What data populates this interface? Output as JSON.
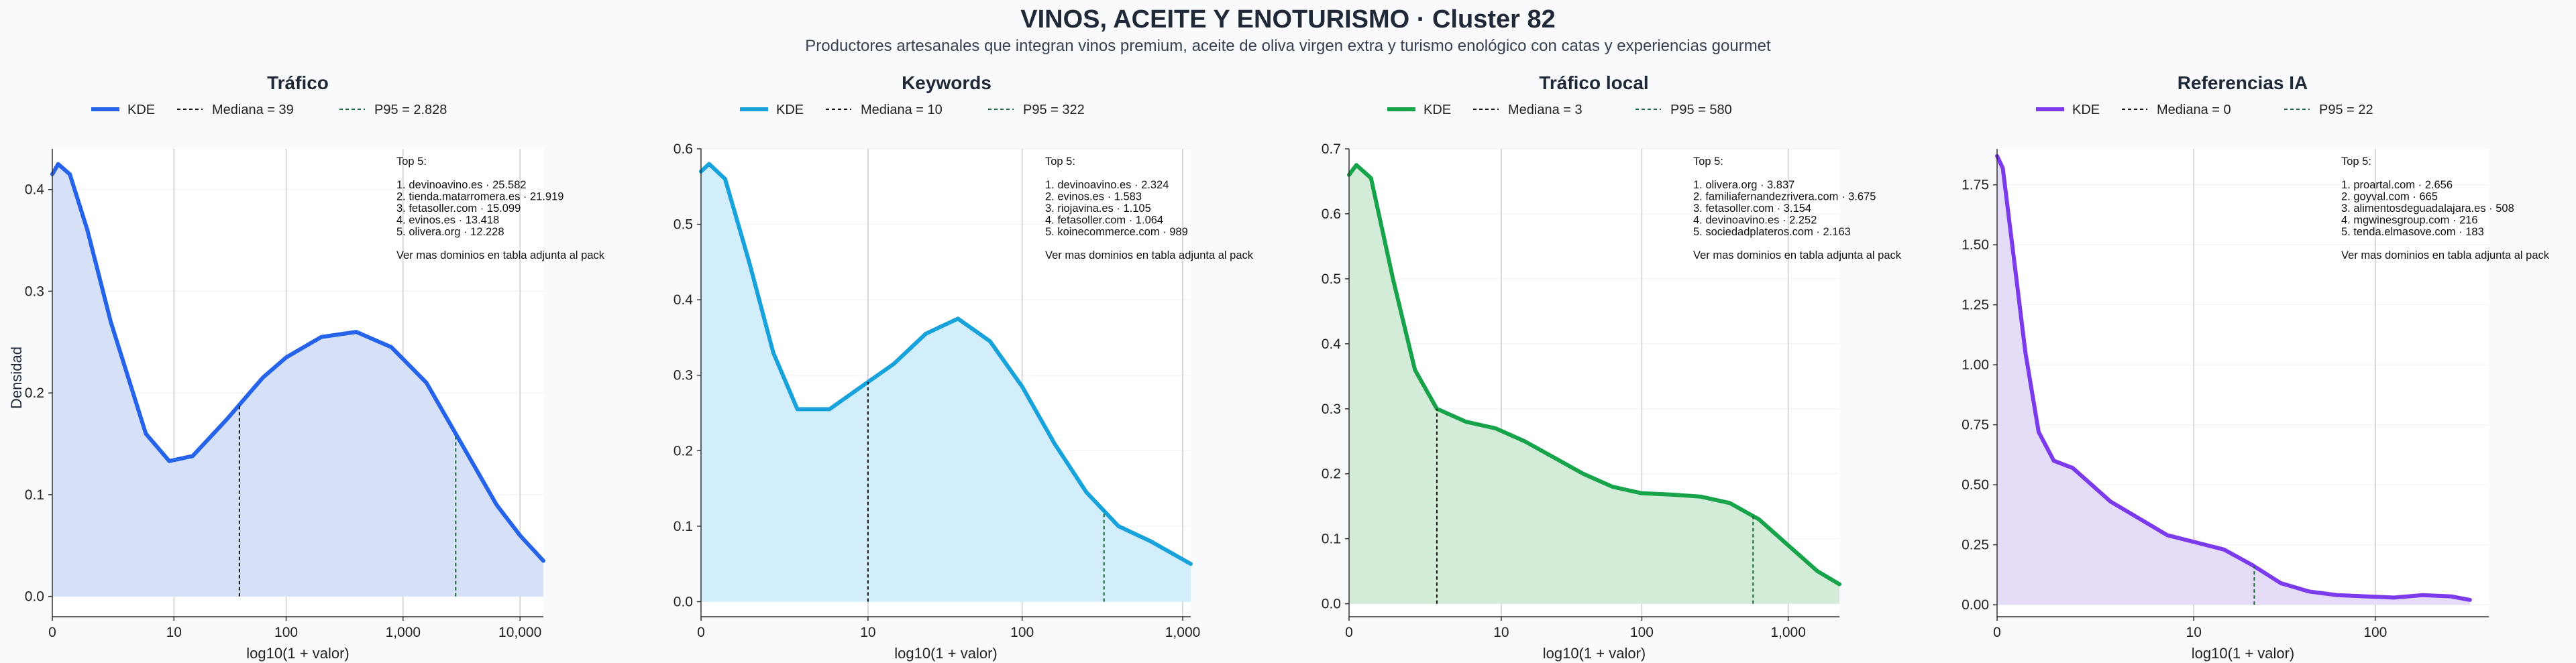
{
  "title": "VINOS, ACEITE Y ENOTURISMO · Cluster 82",
  "subtitle": "Productores artesanales que integran vinos premium, aceite de oliva virgen extra y turismo enológico con catas y experiencias gourmet",
  "ylabel": "Densidad",
  "chart_data": [
    {
      "type": "area",
      "title": "Tráfico",
      "color": "#2563eb",
      "fill": "#d6e0f7",
      "xlabel": "log10(1 + valor)",
      "xlim": [
        0,
        4.2
      ],
      "ylim": [
        -0.02,
        0.44
      ],
      "xticks": [
        {
          "v": 0,
          "label": "0"
        },
        {
          "v": 1.04,
          "label": "10"
        },
        {
          "v": 2.0,
          "label": "100"
        },
        {
          "v": 3.0,
          "label": "1,000"
        },
        {
          "v": 4.0,
          "label": "10,000"
        }
      ],
      "yticks": [
        {
          "v": 0.0,
          "label": "0.0"
        },
        {
          "v": 0.1,
          "label": "0.1"
        },
        {
          "v": 0.2,
          "label": "0.2"
        },
        {
          "v": 0.3,
          "label": "0.3"
        },
        {
          "v": 0.4,
          "label": "0.4"
        }
      ],
      "legend": {
        "kde": "KDE",
        "median": "Mediana = 39",
        "p95": "P95 = 2.828"
      },
      "median_x": 1.6,
      "p95_x": 3.45,
      "x": [
        0,
        0.05,
        0.15,
        0.3,
        0.5,
        0.8,
        1.0,
        1.2,
        1.5,
        1.8,
        2.0,
        2.3,
        2.6,
        2.9,
        3.2,
        3.5,
        3.8,
        4.0,
        4.2
      ],
      "y": [
        0.415,
        0.425,
        0.415,
        0.36,
        0.27,
        0.16,
        0.133,
        0.138,
        0.175,
        0.215,
        0.235,
        0.255,
        0.26,
        0.245,
        0.21,
        0.15,
        0.09,
        0.06,
        0.035
      ],
      "top5": [
        "Top 5:",
        "",
        "1. devinoavino.es · 25.582",
        "2. tienda.matarromera.es · 21.919",
        "3. fetasoller.com · 15.099",
        "4. evinos.es · 13.418",
        "5. olivera.org · 12.228",
        "",
        "Ver mas dominios en tabla adjunta al pack"
      ]
    },
    {
      "type": "area",
      "title": "Keywords",
      "color": "#17a2dc",
      "fill": "#d3eefb",
      "xlabel": "log10(1 + valor)",
      "xlim": [
        0,
        3.05
      ],
      "ylim": [
        -0.02,
        0.6
      ],
      "xticks": [
        {
          "v": 0,
          "label": "0"
        },
        {
          "v": 1.04,
          "label": "10"
        },
        {
          "v": 2.0,
          "label": "100"
        },
        {
          "v": 3.0,
          "label": "1,000"
        }
      ],
      "yticks": [
        {
          "v": 0.0,
          "label": "0.0"
        },
        {
          "v": 0.1,
          "label": "0.1"
        },
        {
          "v": 0.2,
          "label": "0.2"
        },
        {
          "v": 0.3,
          "label": "0.3"
        },
        {
          "v": 0.4,
          "label": "0.4"
        },
        {
          "v": 0.5,
          "label": "0.5"
        },
        {
          "v": 0.6,
          "label": "0.6"
        }
      ],
      "legend": {
        "kde": "KDE",
        "median": "Mediana = 10",
        "p95": "P95 = 322"
      },
      "median_x": 1.04,
      "p95_x": 2.51,
      "x": [
        0,
        0.05,
        0.15,
        0.3,
        0.45,
        0.6,
        0.8,
        1.0,
        1.2,
        1.4,
        1.6,
        1.8,
        2.0,
        2.2,
        2.4,
        2.6,
        2.8,
        3.05
      ],
      "y": [
        0.57,
        0.58,
        0.56,
        0.45,
        0.33,
        0.255,
        0.255,
        0.285,
        0.315,
        0.355,
        0.375,
        0.345,
        0.285,
        0.21,
        0.145,
        0.1,
        0.08,
        0.05
      ],
      "top5": [
        "Top 5:",
        "",
        "1. devinoavino.es · 2.324",
        "2. evinos.es · 1.583",
        "3. riojavina.es · 1.105",
        "4. fetasoller.com · 1.064",
        "5. koinecommerce.com · 989",
        "",
        "Ver mas dominios en tabla adjunta al pack"
      ]
    },
    {
      "type": "area",
      "title": "Tráfico local",
      "color": "#16a34a",
      "fill": "#d2ecd8",
      "xlabel": "log10(1 + valor)",
      "xlim": [
        0,
        3.35
      ],
      "ylim": [
        -0.02,
        0.7
      ],
      "xticks": [
        {
          "v": 0,
          "label": "0"
        },
        {
          "v": 1.04,
          "label": "10"
        },
        {
          "v": 2.0,
          "label": "100"
        },
        {
          "v": 3.0,
          "label": "1,000"
        }
      ],
      "yticks": [
        {
          "v": 0.0,
          "label": "0.0"
        },
        {
          "v": 0.1,
          "label": "0.1"
        },
        {
          "v": 0.2,
          "label": "0.2"
        },
        {
          "v": 0.3,
          "label": "0.3"
        },
        {
          "v": 0.4,
          "label": "0.4"
        },
        {
          "v": 0.5,
          "label": "0.5"
        },
        {
          "v": 0.6,
          "label": "0.6"
        },
        {
          "v": 0.7,
          "label": "0.7"
        }
      ],
      "legend": {
        "kde": "KDE",
        "median": "Mediana = 3",
        "p95": "P95 = 580"
      },
      "median_x": 0.6,
      "p95_x": 2.76,
      "x": [
        0,
        0.05,
        0.15,
        0.3,
        0.45,
        0.6,
        0.8,
        1.0,
        1.2,
        1.4,
        1.6,
        1.8,
        2.0,
        2.2,
        2.4,
        2.6,
        2.8,
        3.0,
        3.2,
        3.35
      ],
      "y": [
        0.66,
        0.675,
        0.655,
        0.5,
        0.36,
        0.3,
        0.28,
        0.27,
        0.25,
        0.225,
        0.2,
        0.18,
        0.17,
        0.168,
        0.165,
        0.155,
        0.13,
        0.09,
        0.05,
        0.03
      ],
      "top5": [
        "Top 5:",
        "",
        "1. olivera.org · 3.837",
        "2. familiafernandezrivera.com · 3.675",
        "3. fetasoller.com · 3.154",
        "4. devinoavino.es · 2.252",
        "5. sociedadplateros.com · 2.163",
        "",
        "Ver mas dominios en tabla adjunta al pack"
      ]
    },
    {
      "type": "area",
      "title": "Referencias IA",
      "color": "#7c3aed",
      "fill": "#e5dcf8",
      "xlabel": "log10(1 + valor)",
      "xlim": [
        0,
        2.6
      ],
      "ylim": [
        -0.05,
        1.9
      ],
      "xticks": [
        {
          "v": 0,
          "label": "0"
        },
        {
          "v": 1.04,
          "label": "10"
        },
        {
          "v": 2.0,
          "label": "100"
        }
      ],
      "yticks": [
        {
          "v": 0.0,
          "label": "0.00"
        },
        {
          "v": 0.25,
          "label": "0.25"
        },
        {
          "v": 0.5,
          "label": "0.50"
        },
        {
          "v": 0.75,
          "label": "0.75"
        },
        {
          "v": 1.0,
          "label": "1.00"
        },
        {
          "v": 1.25,
          "label": "1.25"
        },
        {
          "v": 1.5,
          "label": "1.50"
        },
        {
          "v": 1.75,
          "label": "1.75"
        }
      ],
      "legend": {
        "kde": "KDE",
        "median": "Mediana = 0",
        "p95": "P95 = 22"
      },
      "median_x": 0,
      "p95_x": 1.36,
      "x": [
        0,
        0.03,
        0.08,
        0.15,
        0.22,
        0.3,
        0.4,
        0.5,
        0.6,
        0.75,
        0.9,
        1.05,
        1.2,
        1.35,
        1.5,
        1.65,
        1.8,
        1.95,
        2.1,
        2.25,
        2.4,
        2.5
      ],
      "y": [
        1.87,
        1.82,
        1.5,
        1.05,
        0.72,
        0.6,
        0.57,
        0.5,
        0.43,
        0.36,
        0.29,
        0.26,
        0.23,
        0.165,
        0.09,
        0.055,
        0.04,
        0.035,
        0.03,
        0.04,
        0.035,
        0.02
      ],
      "top5": [
        "Top 5:",
        "",
        "1. proartal.com · 2.656",
        "2. goyval.com · 665",
        "3. alimentosdeguadalajara.es · 508",
        "4. mgwinesgroup.com · 216",
        "5. tenda.elmasove.com · 183",
        "",
        "Ver mas dominios en tabla adjunta al pack"
      ]
    }
  ]
}
